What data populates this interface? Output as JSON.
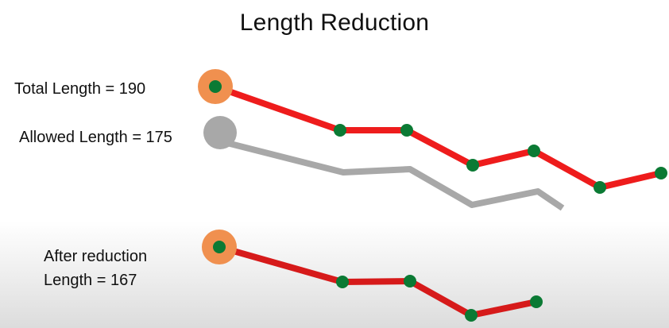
{
  "title": "Length Reduction",
  "labels": {
    "total_length": "Total Length = 190",
    "allowed_length": "Allowed Length = 175",
    "after_reduction": "After reduction",
    "reduced_length": "Length = 167"
  },
  "values": {
    "total_length": 190,
    "allowed_length": 175,
    "reduced_length": 167
  },
  "colors": {
    "route_line": "#ee1c1c",
    "reduced_route_line": "#d61a1a",
    "allowed_line": "#a8a8a8",
    "node": "#0b7a34",
    "start_marker": "#f0904f",
    "allowed_marker": "#a8a8a8"
  }
}
